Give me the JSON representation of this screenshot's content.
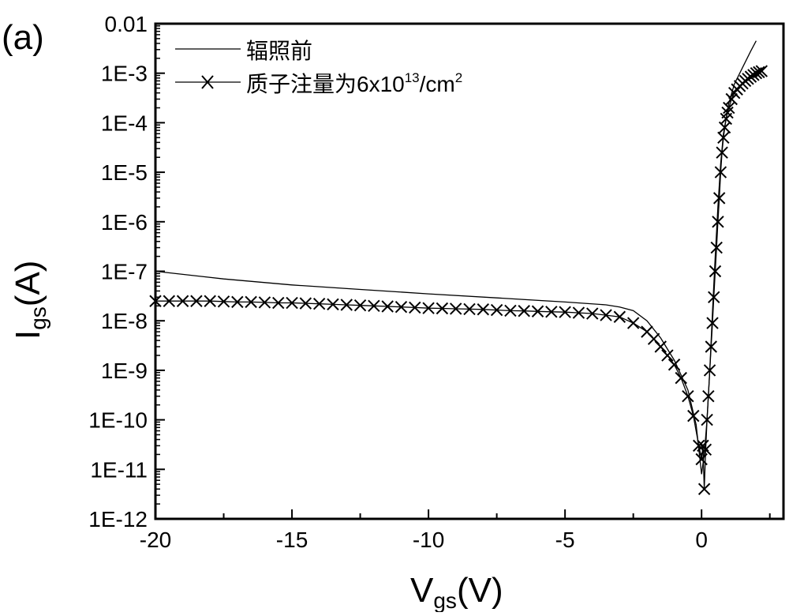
{
  "panel_label": "(a)",
  "chart_data": {
    "type": "line",
    "title": "",
    "xlabel": {
      "main": "V",
      "sub": "gs",
      "unit": "(V)"
    },
    "ylabel": {
      "main": "I",
      "sub": "gs",
      "unit": "(A)"
    },
    "xlim": [
      -20,
      3
    ],
    "ylim": [
      1e-12,
      0.01
    ],
    "yscale": "log",
    "x_ticks": [
      -20,
      -15,
      -10,
      -5,
      0
    ],
    "x_tick_labels": [
      "-20",
      "-15",
      "-10",
      "-5",
      "0"
    ],
    "x_minor_ticks": [
      -17.5,
      -12.5,
      -7.5,
      -2.5,
      2.5
    ],
    "y_ticks": [
      1e-12,
      1e-11,
      1e-10,
      1e-09,
      1e-08,
      1e-07,
      1e-06,
      1e-05,
      0.0001,
      0.001,
      0.01
    ],
    "y_tick_labels": [
      "1E-12",
      "1E-11",
      "1E-10",
      "1E-9",
      "1E-8",
      "1E-7",
      "1E-6",
      "1E-5",
      "1E-4",
      "1E-3",
      "0.01"
    ],
    "grid": false,
    "legend_placement": "top-left",
    "series": [
      {
        "name": "辐照前",
        "style": "line",
        "x": [
          -20,
          -17.5,
          -15,
          -12.5,
          -10,
          -7.5,
          -5,
          -3.5,
          -3,
          -2.5,
          -2,
          -1.5,
          -1,
          -0.5,
          -0.2,
          0,
          0.1,
          0.2,
          0.3,
          0.4,
          0.5,
          0.6,
          0.7,
          0.8,
          1.0,
          1.2,
          1.5,
          1.8,
          2.0
        ],
        "y": [
          1e-07,
          7e-08,
          5.3e-08,
          4.3e-08,
          3.5e-08,
          2.9e-08,
          2.4e-08,
          2.1e-08,
          1.9e-08,
          1.6e-08,
          1e-08,
          4.5e-09,
          1.6e-09,
          4e-10,
          8e-11,
          8e-12,
          2e-11,
          1e-10,
          1e-09,
          1.5e-08,
          2e-07,
          2e-06,
          1.5e-05,
          6e-05,
          0.00025,
          0.0006,
          0.0013,
          0.0028,
          0.0045
        ]
      },
      {
        "name": "质子注量为6x10",
        "name_sup": "13",
        "name_unit": "/cm",
        "name_unit_sup": "2",
        "style": "line-x-markers",
        "x": [
          -20,
          -19.5,
          -19,
          -18.5,
          -18,
          -17.5,
          -17,
          -16.5,
          -16,
          -15.5,
          -15,
          -14.5,
          -14,
          -13.5,
          -13,
          -12.5,
          -12,
          -11.5,
          -11,
          -10.5,
          -10,
          -9.5,
          -9,
          -8.5,
          -8,
          -7.5,
          -7,
          -6.5,
          -6,
          -5.5,
          -5,
          -4.5,
          -4,
          -3.5,
          -3,
          -2.5,
          -2,
          -1.75,
          -1.5,
          -1.25,
          -1,
          -0.75,
          -0.5,
          -0.3,
          -0.1,
          0,
          0.05,
          0.1,
          0.15,
          0.2,
          0.25,
          0.3,
          0.35,
          0.4,
          0.45,
          0.5,
          0.55,
          0.6,
          0.65,
          0.7,
          0.75,
          0.8,
          0.85,
          0.9,
          0.95,
          1.0,
          1.1,
          1.2,
          1.3,
          1.4,
          1.5,
          1.6,
          1.7,
          1.8,
          1.9,
          2.0,
          2.1,
          2.2
        ],
        "y": [
          2.5e-08,
          2.5e-08,
          2.5e-08,
          2.5e-08,
          2.5e-08,
          2.45e-08,
          2.4e-08,
          2.4e-08,
          2.35e-08,
          2.3e-08,
          2.3e-08,
          2.25e-08,
          2.2e-08,
          2.15e-08,
          2.1e-08,
          2.05e-08,
          2e-08,
          1.95e-08,
          1.9e-08,
          1.85e-08,
          1.8e-08,
          1.78e-08,
          1.75e-08,
          1.72e-08,
          1.7e-08,
          1.65e-08,
          1.6e-08,
          1.58e-08,
          1.55e-08,
          1.52e-08,
          1.5e-08,
          1.45e-08,
          1.4e-08,
          1.3e-08,
          1.2e-08,
          9e-09,
          6e-09,
          4.3e-09,
          3e-09,
          2e-09,
          1.3e-09,
          7e-10,
          3e-10,
          1.2e-10,
          3e-11,
          1.6e-11,
          3e-11,
          4e-12,
          2.5e-11,
          1e-10,
          3e-10,
          1e-09,
          3e-09,
          9e-09,
          3e-08,
          1e-07,
          3e-07,
          1e-06,
          3e-06,
          1e-05,
          2.5e-05,
          5e-05,
          8e-05,
          0.00012,
          0.00016,
          0.0002,
          0.0003,
          0.0004,
          0.00047,
          0.00055,
          0.00062,
          0.0007,
          0.00077,
          0.00085,
          0.00092,
          0.001,
          0.00105,
          0.0011
        ]
      }
    ]
  }
}
